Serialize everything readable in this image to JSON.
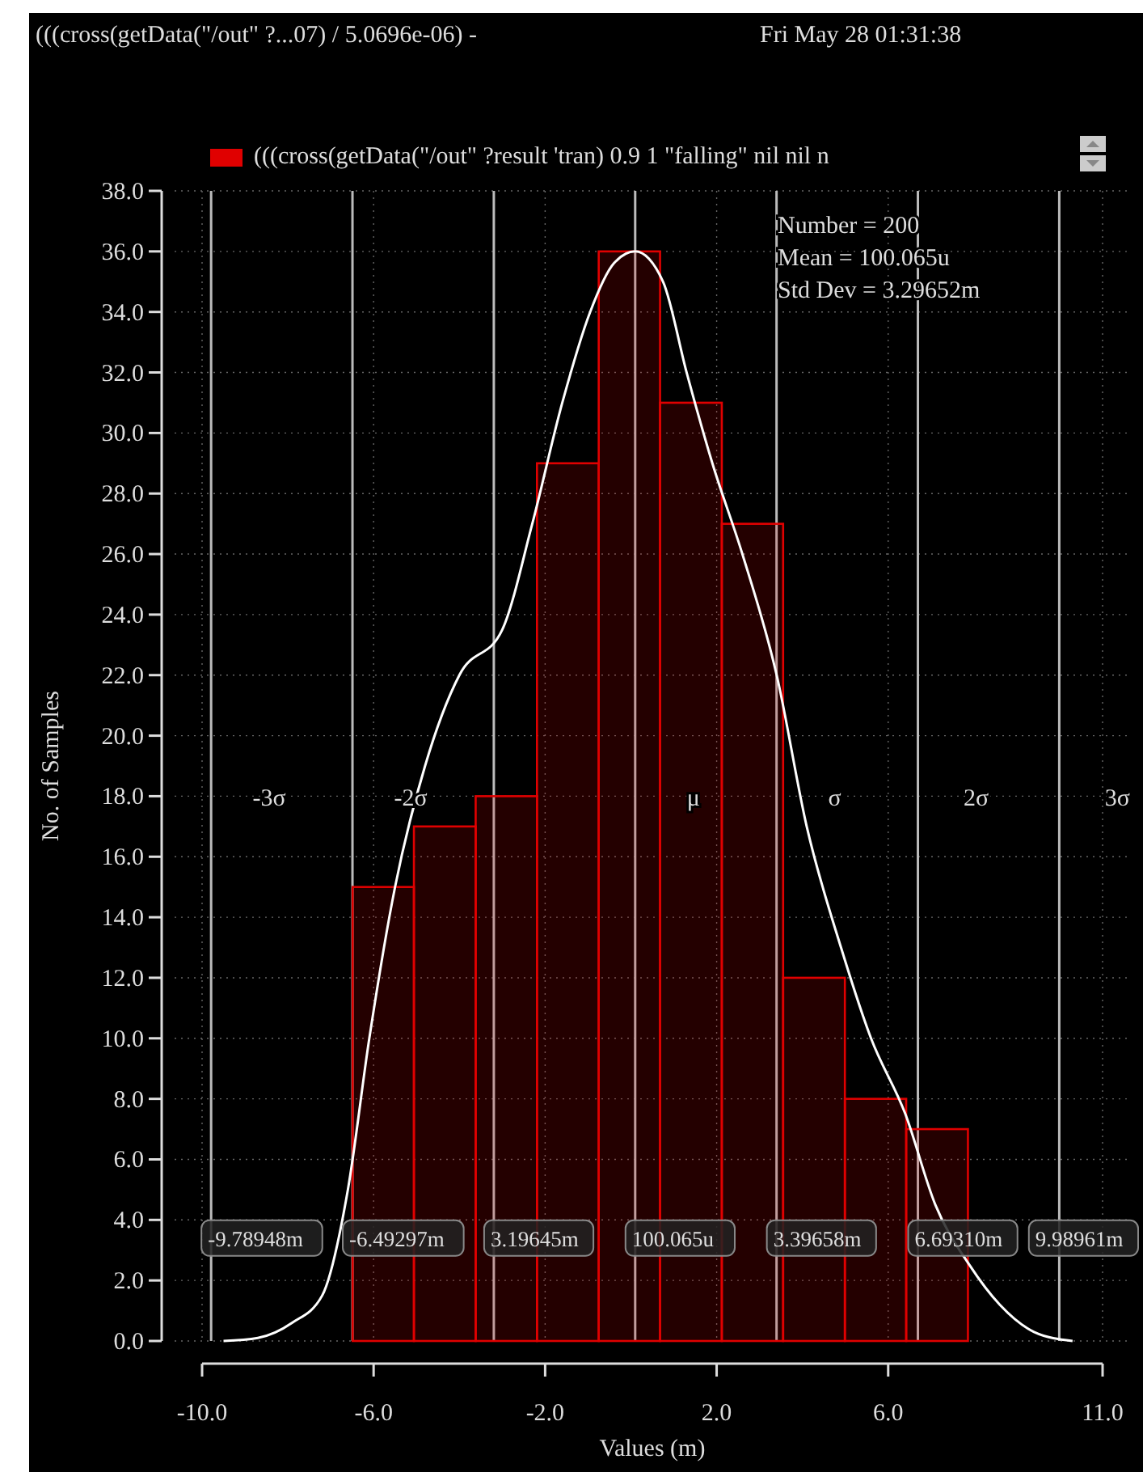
{
  "chart_data": {
    "type": "histogram",
    "title": "(((cross(getData(\"/out\" ?...07) / 5.0696e-06) -",
    "subtitle": "Fri May 28 01:31:38",
    "xlabel": "Values (m)",
    "ylabel": "No. of Samples",
    "bins": [
      -6.49,
      -5.06,
      -3.62,
      -2.19,
      -0.75,
      0.68,
      2.12,
      3.55,
      4.99,
      6.42,
      7.86
    ],
    "series": [
      {
        "name": "(((cross(getData(\"/out\" ?result 'tran) 0.9 1 \"falling\" nil nil n",
        "color": "#e00000",
        "values": [
          15,
          17,
          18,
          29,
          36,
          31,
          27,
          12,
          8,
          7
        ]
      },
      {
        "type": "line",
        "color": "#ffffff",
        "x": [
          -9.5,
          -8.7,
          -7.9,
          -7.2,
          -6.6,
          -6.1,
          -5.5,
          -4.8,
          -4.0,
          -3.0,
          -2.3,
          -1.6,
          -0.95,
          -0.4,
          0.1,
          0.75,
          1.3,
          1.9,
          2.6,
          3.4,
          4.1,
          4.9,
          5.6,
          6.4,
          7.1,
          7.9,
          8.6,
          9.4,
          10.3
        ],
        "values": [
          0,
          0.1,
          0.6,
          1.5,
          5,
          10,
          15,
          19,
          22,
          23.5,
          27,
          31,
          34,
          35.6,
          36,
          35,
          32,
          29,
          26,
          22,
          17,
          13,
          10,
          7.5,
          4.5,
          2.5,
          1.2,
          0.3,
          0
        ]
      }
    ],
    "xlim": [
      -10,
      11
    ],
    "xticks": [
      {
        "value": -10,
        "label": "-10.0"
      },
      {
        "value": -6,
        "label": "-6.0"
      },
      {
        "value": -2,
        "label": "-2.0"
      },
      {
        "value": 2,
        "label": "2.0"
      },
      {
        "value": 6,
        "label": "6.0"
      },
      {
        "value": 11,
        "label": "11.0"
      }
    ],
    "ylim": [
      0,
      38
    ],
    "yticks": [
      {
        "value": 0,
        "label": "0.0"
      },
      {
        "value": 2,
        "label": "2.0"
      },
      {
        "value": 4,
        "label": "4.0"
      },
      {
        "value": 6,
        "label": "6.0"
      },
      {
        "value": 8,
        "label": "8.0"
      },
      {
        "value": 10,
        "label": "10.0"
      },
      {
        "value": 12,
        "label": "12.0"
      },
      {
        "value": 14,
        "label": "14.0"
      },
      {
        "value": 16,
        "label": "16.0"
      },
      {
        "value": 18,
        "label": "18.0"
      },
      {
        "value": 20,
        "label": "20.0"
      },
      {
        "value": 22,
        "label": "22.0"
      },
      {
        "value": 24,
        "label": "24.0"
      },
      {
        "value": 26,
        "label": "26.0"
      },
      {
        "value": 28,
        "label": "28.0"
      },
      {
        "value": 30,
        "label": "30.0"
      },
      {
        "value": 32,
        "label": "32.0"
      },
      {
        "value": 34,
        "label": "34.0"
      },
      {
        "value": 36,
        "label": "36.0"
      },
      {
        "value": 38,
        "label": "38.0"
      }
    ],
    "grid": true,
    "legend": "top",
    "marker": "none",
    "line_style": "solid",
    "ref_lines": [
      {
        "axis": "x",
        "value": -9.78948,
        "label": "-3σ"
      },
      {
        "axis": "x",
        "value": -6.49297,
        "label": "-2σ"
      },
      {
        "axis": "x",
        "value": -3.19645,
        "label": null
      },
      {
        "axis": "x",
        "value": 0.100065,
        "label": "μ"
      },
      {
        "axis": "x",
        "value": 3.39658,
        "label": "σ"
      },
      {
        "axis": "x",
        "value": 6.6931,
        "label": "2σ"
      },
      {
        "axis": "x",
        "value": 9.98961,
        "label": "3σ"
      }
    ],
    "annotations": [
      "Number = 200",
      "Mean = 100.065u",
      "Std Dev = 3.29652m",
      {
        "text": "-9.78948m",
        "x": -9.78948,
        "y": 3.4
      },
      {
        "text": "-6.49297m",
        "x": -6.49297,
        "y": 3.4
      },
      {
        "text": "3.19645m",
        "x": -3.19645,
        "y": 3.4
      },
      {
        "text": "100.065u",
        "x": 0.100065,
        "y": 3.4
      },
      {
        "text": "3.39658m",
        "x": 3.39658,
        "y": 3.4
      },
      {
        "text": "6.69310m",
        "x": 6.6931,
        "y": 3.4
      },
      {
        "text": "9.98961m",
        "x": 9.98961,
        "y": 3.4
      }
    ]
  }
}
